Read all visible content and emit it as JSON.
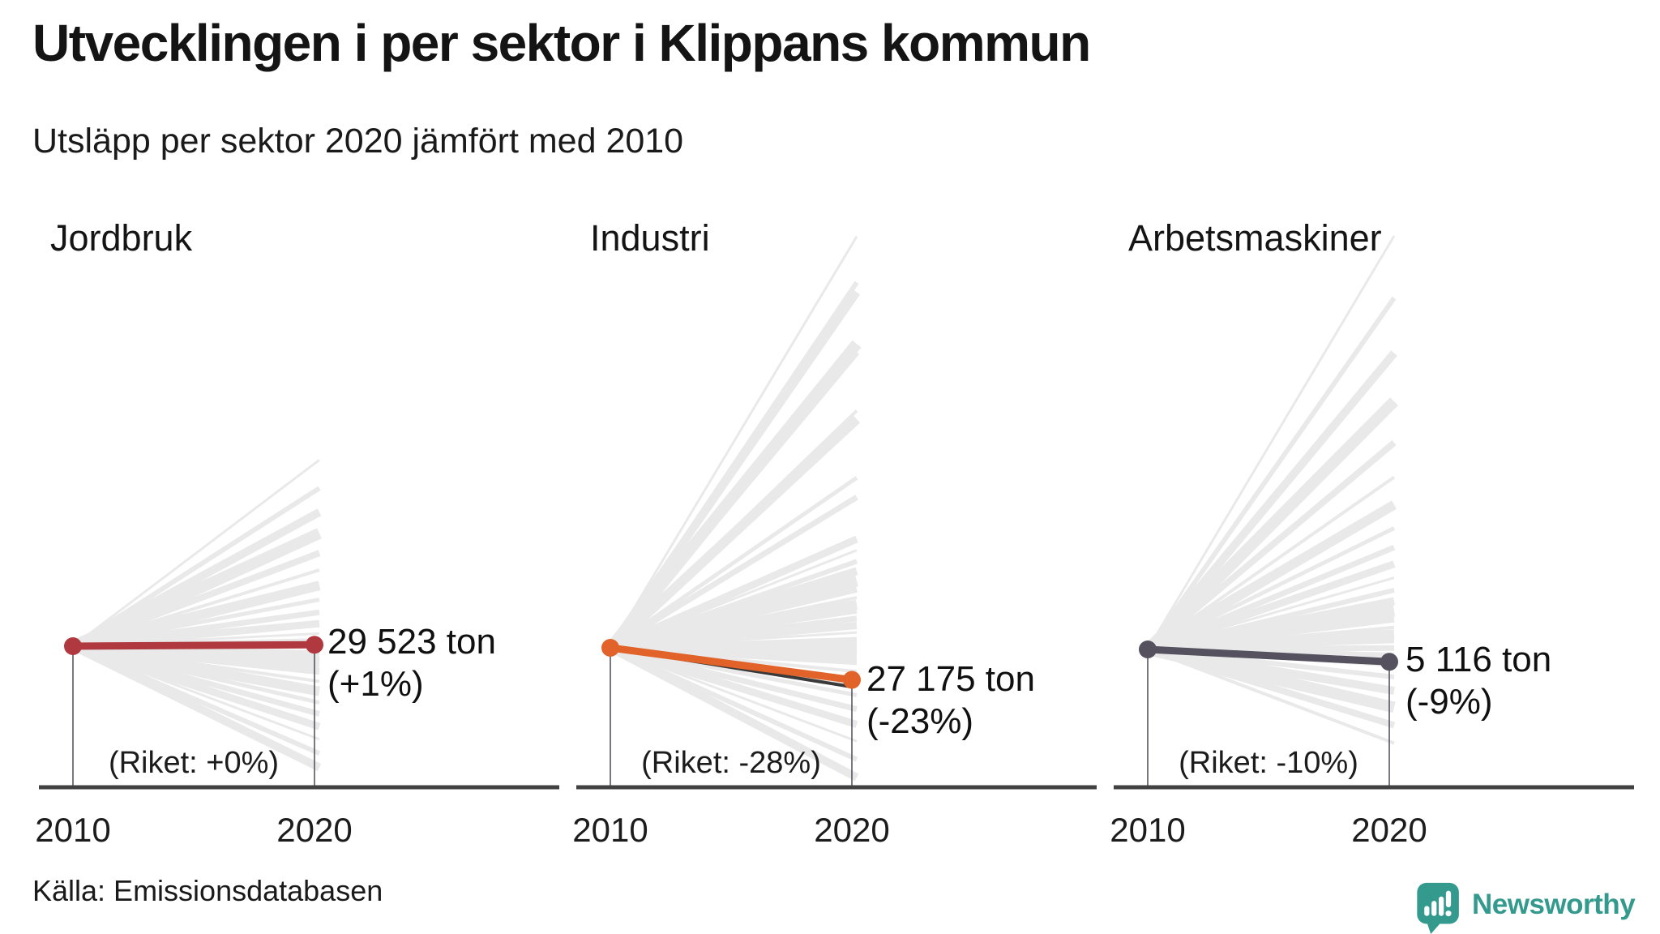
{
  "header": {
    "title": "Utvecklingen i per sektor i Klippans kommun",
    "subtitle": "Utsläpp per sektor 2020 jämfört med 2010"
  },
  "axis": {
    "year_start": "2010",
    "year_end": "2020"
  },
  "source": {
    "label": "Källa: Emissionsdatabasen"
  },
  "brand": {
    "name": "Newsworthy",
    "color": "#349a8e"
  },
  "colors": {
    "fan": "#e9e9e9",
    "riket_line": "#3a3a3a",
    "baseline": "#414141",
    "dropline": "#4d4b57"
  },
  "chart_data": [
    {
      "type": "line",
      "title": "Jordbruk",
      "x": [
        "2010",
        "2020"
      ],
      "value_2020_ton": 29523,
      "value_label": "29 523 ton",
      "change_pct": 1,
      "change_label": "(+1%)",
      "riket_change_pct": 0,
      "riket_label": "(Riket: +0%)",
      "color": "#b0383f",
      "background_lines_pct": [
        132,
        112,
        95,
        80,
        66,
        54,
        43,
        33,
        24,
        16,
        9,
        4,
        -6,
        -12,
        -18,
        -25,
        -32,
        -40,
        -48,
        -57,
        -66,
        -76,
        -86
      ]
    },
    {
      "type": "line",
      "title": "Industri",
      "x": [
        "2010",
        "2020"
      ],
      "value_2020_ton": 27175,
      "value_label": "27 175 ton",
      "change_pct": -23,
      "change_label": "(-23%)",
      "riket_change_pct": -28,
      "riket_label": "(Riket: -28%)",
      "color": "#e16329",
      "background_lines_pct": [
        295,
        262,
        255,
        218,
        212,
        170,
        164,
        122,
        108,
        78,
        70,
        62,
        55,
        48,
        42,
        36,
        31,
        26,
        21,
        16,
        11,
        6,
        2,
        -4,
        -10,
        -17,
        -25,
        -34,
        -44,
        -55,
        -67,
        -80,
        -93
      ]
    },
    {
      "type": "line",
      "title": "Arbetsmaskiner",
      "x": [
        "2010",
        "2020"
      ],
      "value_2020_ton": 5116,
      "value_label": "5 116 ton",
      "change_pct": -9,
      "change_label": "(-9%)",
      "riket_change_pct": -10,
      "riket_label": "(Riket: -10%)",
      "color": "#55515f",
      "background_lines_pct": [
        300,
        255,
        215,
        180,
        150,
        125,
        105,
        88,
        74,
        62,
        52,
        43,
        35,
        28,
        22,
        16,
        11,
        6,
        1,
        -5,
        -12,
        -20,
        -30,
        -42,
        -55,
        -68
      ]
    }
  ]
}
